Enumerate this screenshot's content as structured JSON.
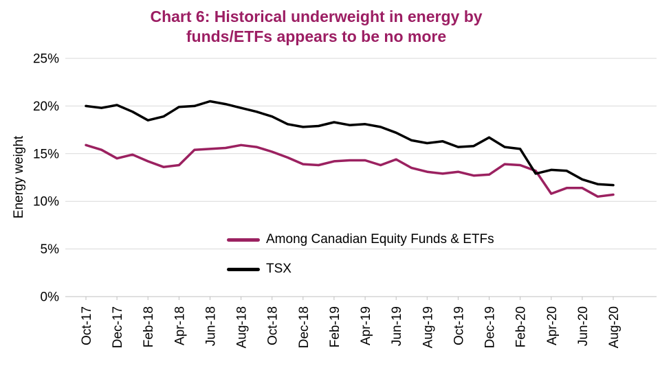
{
  "header": {
    "title_line1": "Chart 6: Historical underweight in energy by",
    "title_line2": "funds/ETFs appears to be no more"
  },
  "colors": {
    "title": "#9C1E63",
    "gridline": "#D9D9D9",
    "axis_line": "#BFBFBF",
    "text": "#000000"
  },
  "chart_data": {
    "type": "line",
    "title": "Chart 6: Historical underweight in energy by funds/ETFs appears to be no more",
    "xlabel": "",
    "ylabel": "Energy weight",
    "ylim": [
      0,
      25
    ],
    "y_ticks": [
      0,
      5,
      10,
      15,
      20,
      25
    ],
    "y_tick_labels": [
      "0%",
      "5%",
      "10%",
      "15%",
      "20%",
      "25%"
    ],
    "x_tick_every": 2,
    "x_tick_labels": [
      "Oct-17",
      "Dec-17",
      "Feb-18",
      "Apr-18",
      "Jun-18",
      "Aug-18",
      "Oct-18",
      "Dec-18",
      "Feb-19",
      "Apr-19",
      "Jun-19",
      "Aug-19",
      "Oct-19",
      "Dec-19",
      "Feb-20",
      "Apr-20",
      "Jun-20",
      "Aug-20"
    ],
    "grid": "horizontal",
    "legend_position": "inside-bottom-center",
    "categories": [
      "Oct-17",
      "Nov-17",
      "Dec-17",
      "Jan-18",
      "Feb-18",
      "Mar-18",
      "Apr-18",
      "May-18",
      "Jun-18",
      "Jul-18",
      "Aug-18",
      "Sep-18",
      "Oct-18",
      "Nov-18",
      "Dec-18",
      "Jan-19",
      "Feb-19",
      "Mar-19",
      "Apr-19",
      "May-19",
      "Jun-19",
      "Jul-19",
      "Aug-19",
      "Sep-19",
      "Oct-19",
      "Nov-19",
      "Dec-19",
      "Jan-20",
      "Feb-20",
      "Mar-20",
      "Apr-20",
      "May-20",
      "Jun-20",
      "Jul-20",
      "Aug-20"
    ],
    "series": [
      {
        "id": "funds",
        "name": "Among Canadian Equity Funds & ETFs",
        "color": "#9B2160",
        "values": [
          15.9,
          15.4,
          14.5,
          14.9,
          14.2,
          13.6,
          13.8,
          15.4,
          15.5,
          15.6,
          15.9,
          15.7,
          15.2,
          14.6,
          13.9,
          13.8,
          14.2,
          14.3,
          14.3,
          13.8,
          14.4,
          13.5,
          13.1,
          12.9,
          13.1,
          12.7,
          12.8,
          13.9,
          13.8,
          13.2,
          10.8,
          11.4,
          11.4,
          10.5,
          10.7
        ]
      },
      {
        "id": "tsx",
        "name": "TSX",
        "color": "#000000",
        "values": [
          20.0,
          19.8,
          20.1,
          19.4,
          18.5,
          18.9,
          19.9,
          20.0,
          20.5,
          20.2,
          19.8,
          19.4,
          18.9,
          18.1,
          17.8,
          17.9,
          18.3,
          18.0,
          18.1,
          17.8,
          17.2,
          16.4,
          16.1,
          16.3,
          15.7,
          15.8,
          16.7,
          15.7,
          15.5,
          12.9,
          13.3,
          13.2,
          12.3,
          11.8,
          11.7
        ]
      }
    ]
  }
}
